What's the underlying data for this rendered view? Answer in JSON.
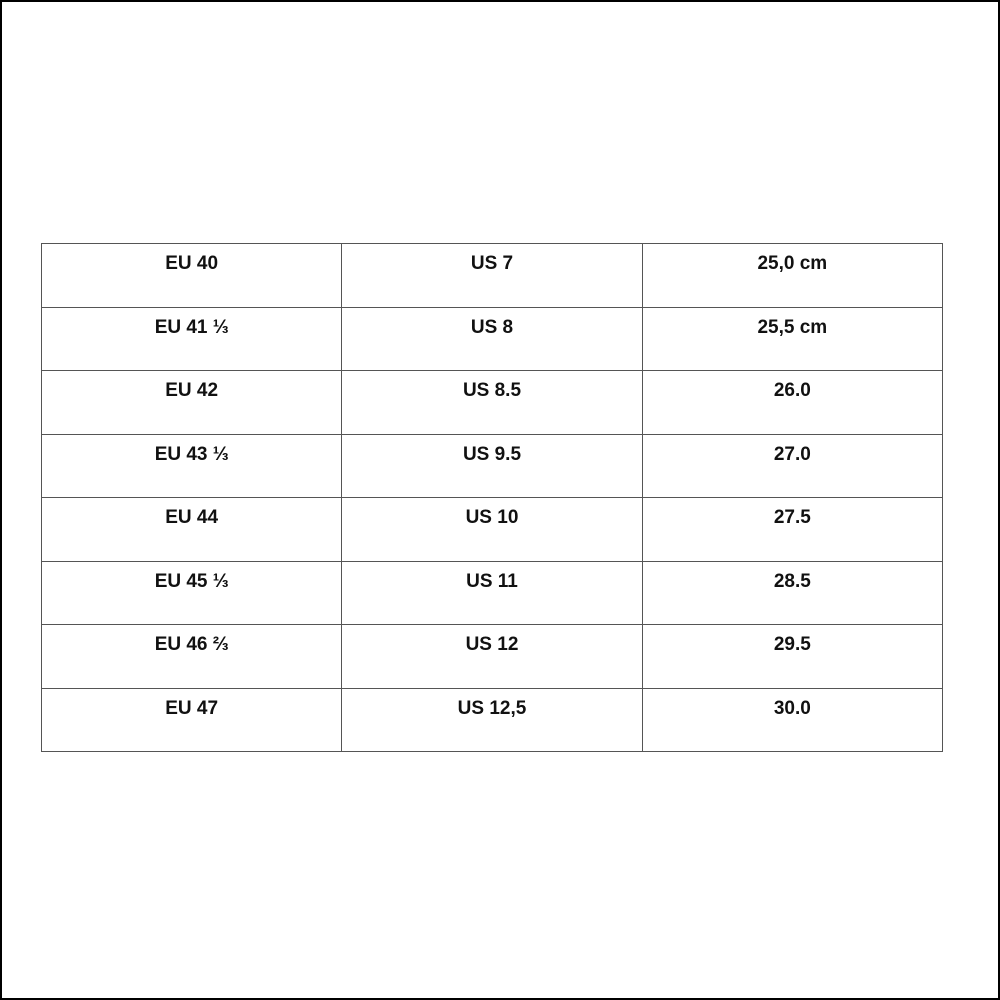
{
  "rows": [
    [
      "EU 40",
      "US 7",
      "25,0 cm"
    ],
    [
      "EU 41 ⅓",
      "US 8",
      "25,5 cm"
    ],
    [
      "EU 42",
      "US 8.5",
      "26.0"
    ],
    [
      "EU 43 ⅓",
      "US 9.5",
      "27.0"
    ],
    [
      "EU 44",
      "US 10",
      "27.5"
    ],
    [
      "EU 45 ⅓",
      "US 11",
      "28.5"
    ],
    [
      "EU 46 ⅔",
      "US 12",
      "29.5"
    ],
    [
      "EU 47",
      "US 12,5",
      "30.0"
    ]
  ]
}
